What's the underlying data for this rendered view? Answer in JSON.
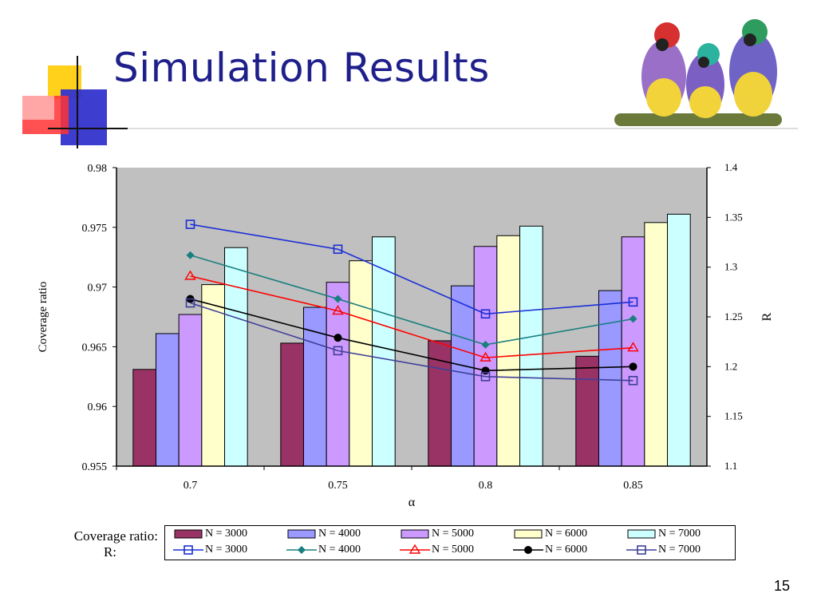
{
  "slide": {
    "title": "Simulation Results",
    "page_number": "15"
  },
  "chart_data": {
    "type": "bar",
    "xlabel": "α",
    "ylabel": "Coverage ratio",
    "y2label": "R",
    "categories": [
      "0.7",
      "0.75",
      "0.8",
      "0.85"
    ],
    "ylim": [
      0.955,
      0.98
    ],
    "yticks": [
      "0.955",
      "0.96",
      "0.965",
      "0.97",
      "0.975",
      "0.98"
    ],
    "y2lim": [
      1.1,
      1.4
    ],
    "y2ticks": [
      "1.1",
      "1.15",
      "1.2",
      "1.25",
      "1.3",
      "1.35",
      "1.4"
    ],
    "plot_background": "#c0c0c0",
    "bar_series_label": "Coverage ratio:",
    "line_series_label": "R:",
    "bar_series": [
      {
        "name": "N = 3000",
        "color": "#993366",
        "values": [
          0.9631,
          0.9653,
          0.9655,
          0.9642
        ]
      },
      {
        "name": "N = 4000",
        "color": "#9999ff",
        "values": [
          0.9661,
          0.9683,
          0.9701,
          0.9697
        ]
      },
      {
        "name": "N = 5000",
        "color": "#cc99ff",
        "values": [
          0.9677,
          0.9704,
          0.9734,
          0.9742
        ]
      },
      {
        "name": "N = 6000",
        "color": "#ffffcc",
        "values": [
          0.9702,
          0.9722,
          0.9743,
          0.9754
        ]
      },
      {
        "name": "N = 7000",
        "color": "#ccffff",
        "values": [
          0.9733,
          0.9742,
          0.9751,
          0.9761
        ]
      }
    ],
    "line_series": [
      {
        "name": "N = 3000",
        "color": "#1a2ed6",
        "marker": "square",
        "values": [
          1.343,
          1.318,
          1.253,
          1.265
        ]
      },
      {
        "name": "N = 4000",
        "color": "#1a7f7f",
        "marker": "diamond",
        "values": [
          1.312,
          1.268,
          1.222,
          1.248
        ]
      },
      {
        "name": "N = 5000",
        "color": "#ff0000",
        "marker": "triangle",
        "values": [
          1.291,
          1.256,
          1.209,
          1.219
        ]
      },
      {
        "name": "N = 6000",
        "color": "#000000",
        "marker": "circle",
        "values": [
          1.268,
          1.229,
          1.196,
          1.2
        ]
      },
      {
        "name": "N = 7000",
        "color": "#3f3f9a",
        "marker": "square",
        "values": [
          1.264,
          1.216,
          1.19,
          1.186
        ]
      }
    ]
  }
}
